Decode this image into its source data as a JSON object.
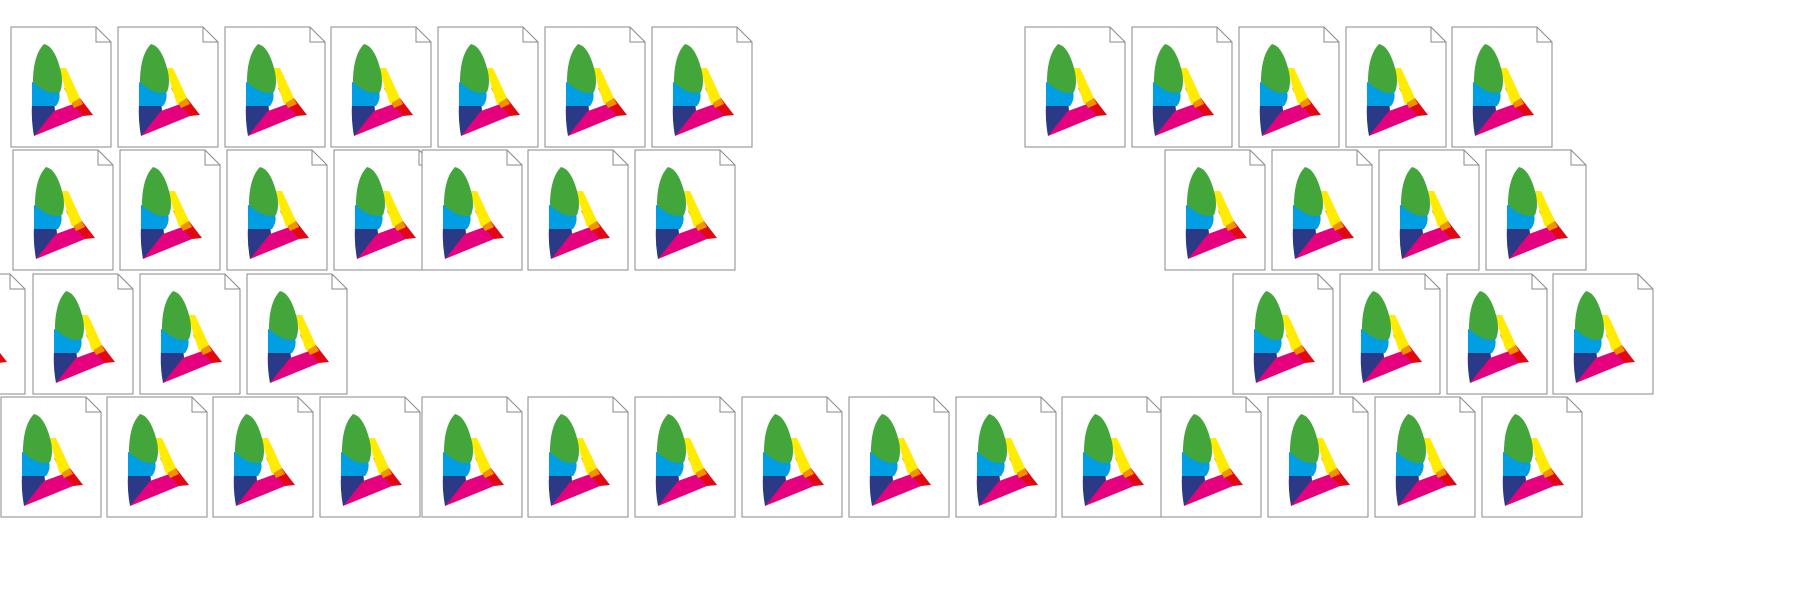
{
  "desktop": {
    "icon_type": "icc-color-profile-file-icon",
    "rows": [
      {
        "icon_count": 12
      },
      {
        "icon_count": 11
      },
      {
        "icon_count": 8
      },
      {
        "icon_count": 15
      }
    ]
  },
  "colors": {
    "page_background": "#ffffff",
    "file_outline": "#8a8a8a",
    "spectrum": [
      "#43a63a",
      "#009fe3",
      "#2b3a86",
      "#ffec00",
      "#e5007e",
      "#f39200",
      "#e30613"
    ]
  }
}
